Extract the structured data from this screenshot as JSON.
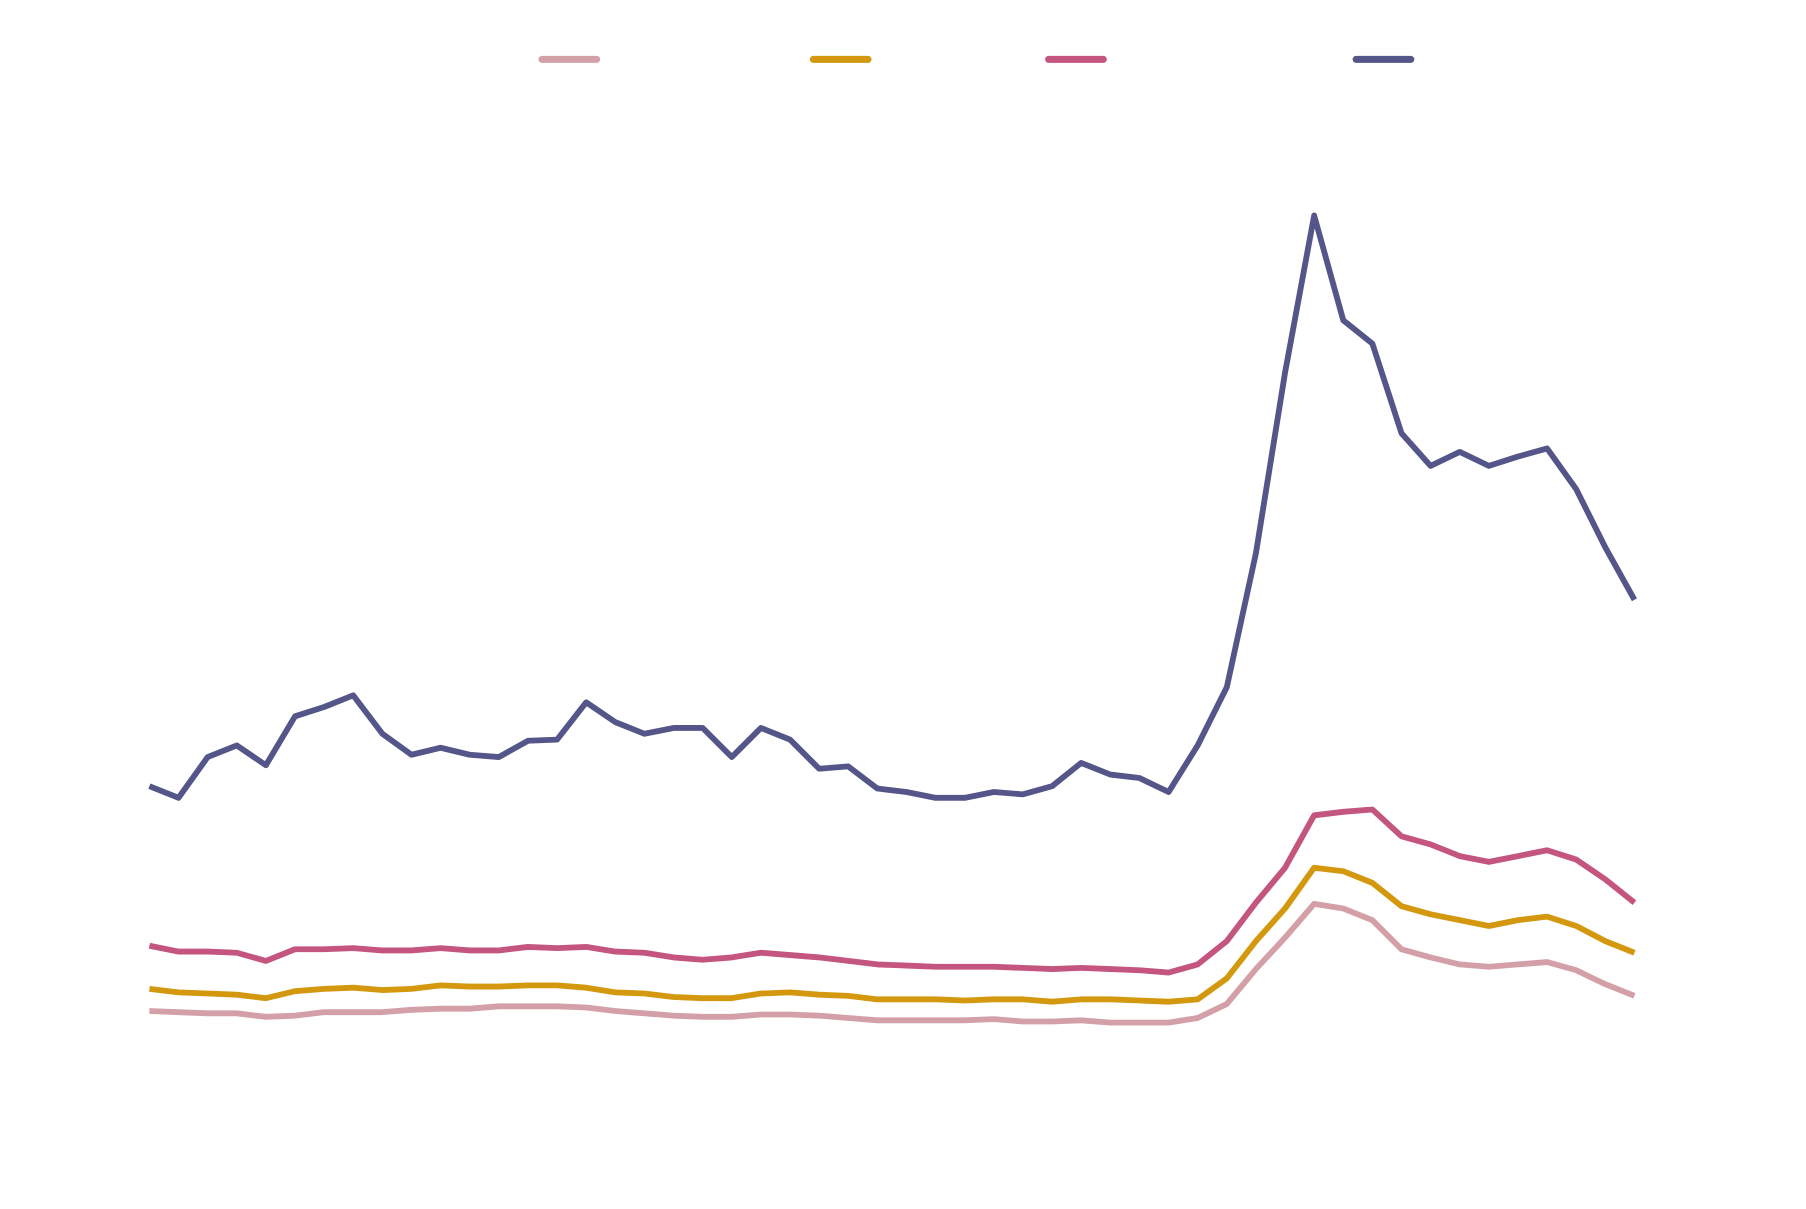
{
  "chart_data": {
    "type": "line",
    "legend": "top",
    "ylim": [
      0,
      100
    ],
    "series": [
      {
        "color": "#d4a0a8",
        "values": [
          13.2,
          13.1,
          13,
          13,
          12.7,
          12.8,
          13.1,
          13.1,
          13.1,
          13.3,
          13.4,
          13.4,
          13.6,
          13.6,
          13.6,
          13.5,
          13.2,
          13,
          12.8,
          12.7,
          12.7,
          12.9,
          12.9,
          12.8,
          12.6,
          12.4,
          12.4,
          12.4,
          12.4,
          12.5,
          12.3,
          12.3,
          12.4,
          12.2,
          12.2,
          12.2,
          12.6,
          13.8,
          16.8,
          19.5,
          22.4,
          22,
          21,
          18.5,
          17.8,
          17.2,
          17,
          17.2,
          17.4,
          16.7,
          15.5,
          14.5
        ]
      },
      {
        "color": "#d4980f",
        "values": [
          15.1,
          14.8,
          14.7,
          14.6,
          14.3,
          14.9,
          15.1,
          15.2,
          15,
          15.1,
          15.4,
          15.3,
          15.3,
          15.4,
          15.4,
          15.2,
          14.8,
          14.7,
          14.4,
          14.3,
          14.3,
          14.7,
          14.8,
          14.6,
          14.5,
          14.2,
          14.2,
          14.2,
          14.1,
          14.2,
          14.2,
          14,
          14.2,
          14.2,
          14.1,
          14,
          14.2,
          16,
          19.2,
          22,
          25.5,
          25.2,
          24.2,
          22.2,
          21.5,
          21,
          20.5,
          21,
          21.3,
          20.5,
          19.2,
          18.2
        ]
      },
      {
        "color": "#c4557f",
        "values": [
          18.8,
          18.3,
          18.3,
          18.2,
          17.5,
          18.5,
          18.5,
          18.6,
          18.4,
          18.4,
          18.6,
          18.4,
          18.4,
          18.7,
          18.6,
          18.7,
          18.3,
          18.2,
          17.8,
          17.6,
          17.8,
          18.2,
          18,
          17.8,
          17.5,
          17.2,
          17.1,
          17,
          17,
          17,
          16.9,
          16.8,
          16.9,
          16.8,
          16.7,
          16.5,
          17.2,
          19.2,
          22.5,
          25.5,
          30,
          30.3,
          30.5,
          28.2,
          27.5,
          26.5,
          26,
          26.5,
          27,
          26.2,
          24.5,
          22.5
        ]
      },
      {
        "color": "#545689",
        "values": [
          32.5,
          31.5,
          35,
          36,
          34.3,
          38.5,
          39.3,
          40.3,
          37,
          35.2,
          35.8,
          35.2,
          35,
          36.4,
          36.5,
          39.7,
          38,
          37,
          37.5,
          37.5,
          35,
          37.5,
          36.5,
          34,
          34.2,
          32.3,
          32,
          31.5,
          31.5,
          32,
          31.8,
          32.5,
          34.5,
          33.5,
          33.2,
          32,
          36,
          41,
          52.5,
          68,
          81.5,
          72.5,
          70.5,
          62.8,
          60,
          61.2,
          60,
          60.8,
          61.5,
          58,
          53,
          48.5
        ]
      }
    ]
  }
}
